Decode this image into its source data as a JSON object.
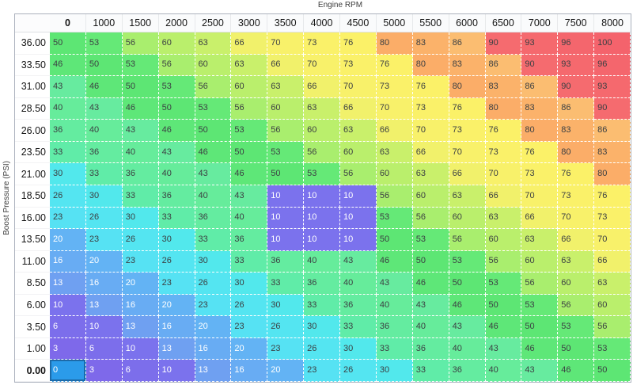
{
  "axis": {
    "x_title": "Engine RPM",
    "y_title": "Boost Pressure (PSI)"
  },
  "table": {
    "cursor": {
      "row_index": 15,
      "col_index": 0
    },
    "selected_cell": {
      "row_index": 15,
      "col_index": 0
    }
  },
  "colors": {
    "table_border": "#abb2bd",
    "header_bg": "#fafbfc",
    "cell_text_dark": "#3c4043",
    "cell_text_light": "#ffffff",
    "light_text_max_value": 20,
    "selected_cell_fill": "#2b9bea",
    "selected_cell_border": "#1d6aa8",
    "colormap": {
      "0": "#7f68ea",
      "3": "#7e69ea",
      "6": "#7c6eeb",
      "10": "#7b72ed",
      "13": "#6fa0f1",
      "16": "#68acf3",
      "20": "#63b3f4",
      "23": "#56e2f3",
      "26": "#54e5f1",
      "30": "#52e8ec",
      "33": "#60eca8",
      "36": "#64eca0",
      "40": "#66ec9b",
      "43": "#67eb9f",
      "46": "#5ee778",
      "50": "#5de674",
      "53": "#65e977",
      "56": "#a9ee6e",
      "60": "#baef6c",
      "63": "#c9f06b",
      "66": "#f1f16b",
      "70": "#f8f16a",
      "73": "#faf169",
      "76": "#fbf168",
      "80": "#fbad68",
      "83": "#fbb26a",
      "86": "#fbbd71",
      "90": "#f56b6f",
      "93": "#f5696e",
      "96": "#f4666d",
      "100": "#f4636c"
    }
  },
  "chart_data": {
    "type": "heatmap",
    "title": "Engine RPM",
    "xlabel": "Engine RPM",
    "ylabel": "Boost Pressure (PSI)",
    "x_categories": [
      "0",
      "1000",
      "1500",
      "2000",
      "2500",
      "3000",
      "3500",
      "4000",
      "4500",
      "5000",
      "5500",
      "6000",
      "6500",
      "7000",
      "7500",
      "8000"
    ],
    "y_categories": [
      "36.00",
      "33.50",
      "31.00",
      "28.50",
      "26.00",
      "23.50",
      "21.00",
      "18.50",
      "16.00",
      "13.50",
      "11.00",
      "8.50",
      "6.00",
      "3.50",
      "1.00",
      "0.00"
    ],
    "values": [
      [
        50,
        53,
        56,
        60,
        63,
        66,
        70,
        73,
        76,
        80,
        83,
        86,
        90,
        93,
        96,
        100
      ],
      [
        46,
        50,
        53,
        56,
        60,
        63,
        66,
        70,
        73,
        76,
        80,
        83,
        86,
        90,
        93,
        96
      ],
      [
        43,
        46,
        50,
        53,
        56,
        60,
        63,
        66,
        70,
        73,
        76,
        80,
        83,
        86,
        90,
        93
      ],
      [
        40,
        43,
        46,
        50,
        53,
        56,
        60,
        63,
        66,
        70,
        73,
        76,
        80,
        83,
        86,
        90
      ],
      [
        36,
        40,
        43,
        46,
        50,
        53,
        56,
        60,
        63,
        66,
        70,
        73,
        76,
        80,
        83,
        86
      ],
      [
        33,
        36,
        40,
        43,
        46,
        50,
        53,
        56,
        60,
        63,
        66,
        70,
        73,
        76,
        80,
        83
      ],
      [
        30,
        33,
        36,
        40,
        43,
        46,
        50,
        53,
        56,
        60,
        63,
        66,
        70,
        73,
        76,
        80
      ],
      [
        26,
        30,
        33,
        36,
        40,
        43,
        10,
        10,
        10,
        56,
        60,
        63,
        66,
        70,
        73,
        76
      ],
      [
        23,
        26,
        30,
        33,
        36,
        40,
        10,
        10,
        10,
        53,
        56,
        60,
        63,
        66,
        70,
        73
      ],
      [
        20,
        23,
        26,
        30,
        33,
        36,
        10,
        10,
        10,
        50,
        53,
        56,
        60,
        63,
        66,
        70
      ],
      [
        16,
        20,
        23,
        26,
        30,
        33,
        36,
        40,
        43,
        46,
        50,
        53,
        56,
        60,
        63,
        66
      ],
      [
        13,
        16,
        20,
        23,
        26,
        30,
        33,
        36,
        40,
        43,
        46,
        50,
        53,
        56,
        60,
        63
      ],
      [
        10,
        13,
        16,
        20,
        23,
        26,
        30,
        33,
        36,
        40,
        43,
        46,
        50,
        53,
        56,
        60
      ],
      [
        6,
        10,
        13,
        16,
        20,
        23,
        26,
        30,
        33,
        36,
        40,
        43,
        46,
        50,
        53,
        56
      ],
      [
        3,
        6,
        10,
        13,
        16,
        20,
        23,
        26,
        30,
        33,
        36,
        40,
        43,
        46,
        50,
        53
      ],
      [
        0,
        3,
        6,
        10,
        13,
        16,
        20,
        23,
        26,
        30,
        33,
        36,
        40,
        43,
        46,
        50
      ]
    ],
    "value_range": [
      0,
      100
    ],
    "grid": "white dashed cell borders",
    "legend_position": "none"
  }
}
